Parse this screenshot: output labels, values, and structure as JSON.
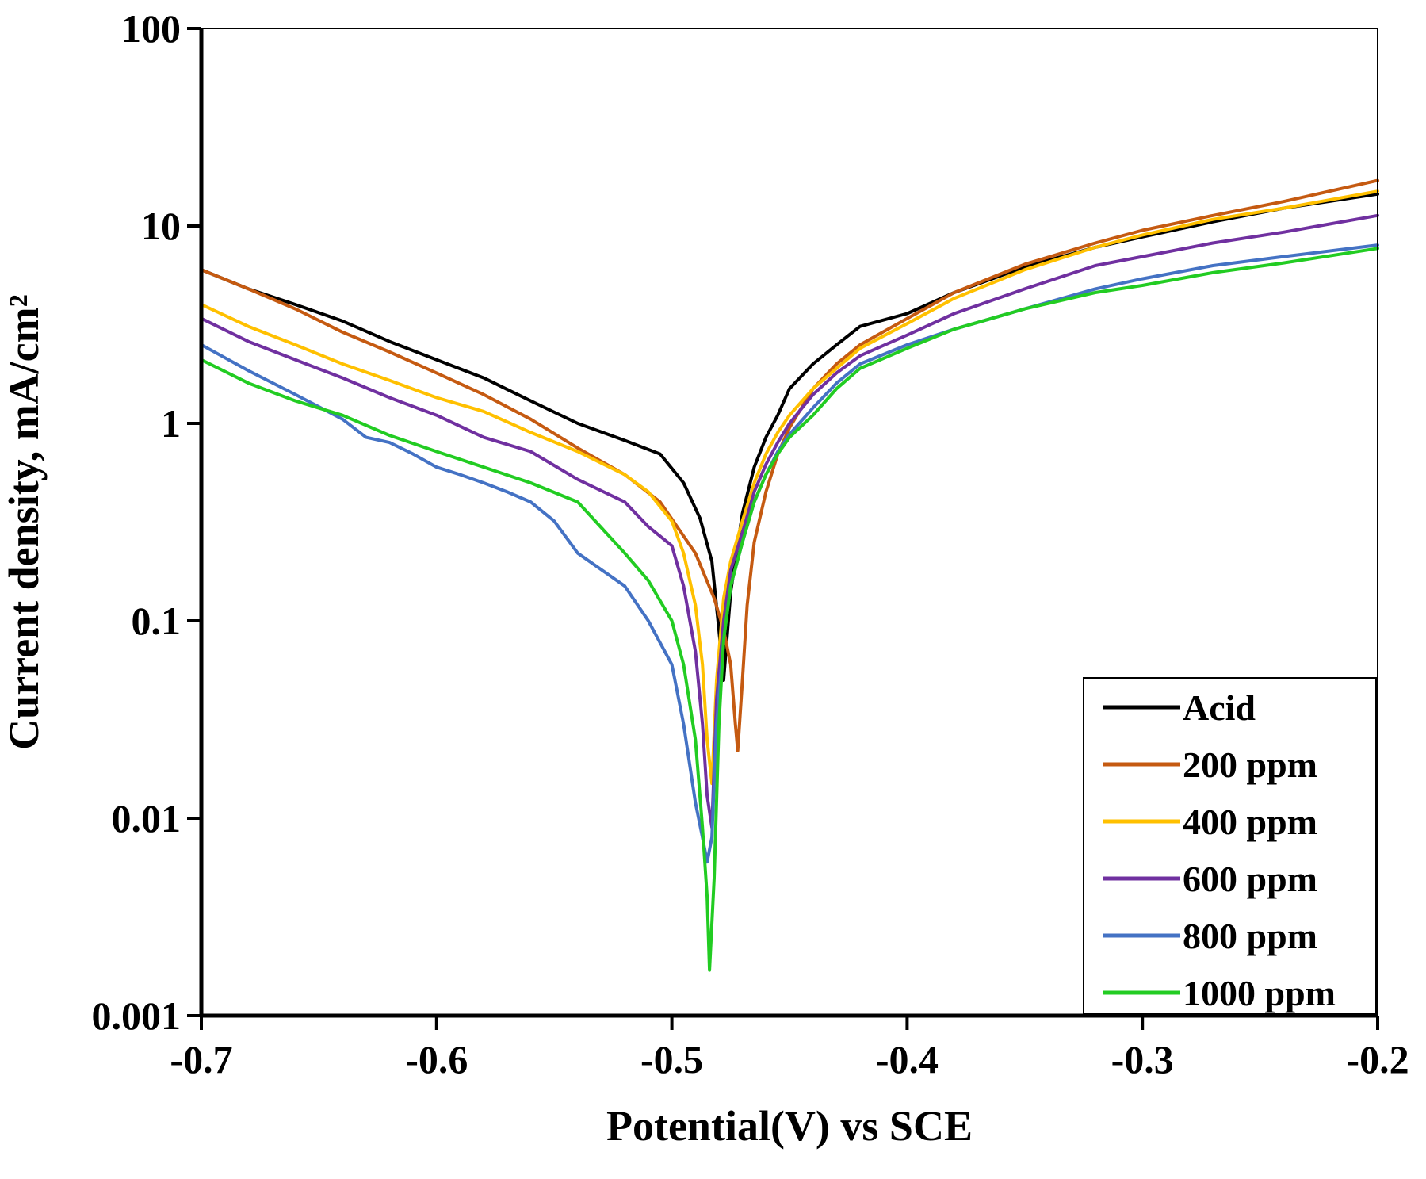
{
  "chart_data": {
    "type": "line",
    "xlabel": "Potential(V) vs SCE",
    "ylabel": "Current density, mA/cm²",
    "y_scale": "log",
    "xlim": [
      -0.7,
      -0.2
    ],
    "ylim": [
      0.001,
      100
    ],
    "x_ticks": [
      "-0.7",
      "-0.6",
      "-0.5",
      "-0.4",
      "-0.3",
      "-0.2"
    ],
    "y_ticks": [
      "0.001",
      "0.01",
      "0.1",
      "1",
      "10",
      "100"
    ],
    "grid": false,
    "legend_position": "bottom-right",
    "series": [
      {
        "name": "Acid",
        "color": "#000000",
        "x": [
          -0.7,
          -0.68,
          -0.66,
          -0.64,
          -0.62,
          -0.6,
          -0.58,
          -0.56,
          -0.54,
          -0.52,
          -0.505,
          -0.495,
          -0.488,
          -0.483,
          -0.48,
          -0.478,
          -0.475,
          -0.47,
          -0.465,
          -0.46,
          -0.455,
          -0.45,
          -0.44,
          -0.43,
          -0.42,
          -0.4,
          -0.38,
          -0.35,
          -0.32,
          -0.3,
          -0.27,
          -0.24,
          -0.2
        ],
        "y": [
          6.0,
          4.8,
          4.0,
          3.3,
          2.6,
          2.1,
          1.7,
          1.3,
          1.0,
          0.82,
          0.7,
          0.5,
          0.33,
          0.2,
          0.09,
          0.05,
          0.14,
          0.35,
          0.6,
          0.85,
          1.1,
          1.5,
          2.0,
          2.5,
          3.1,
          3.6,
          4.6,
          6.2,
          7.8,
          8.8,
          10.5,
          12.3,
          14.5
        ]
      },
      {
        "name": "200 ppm",
        "color": "#C55A11",
        "x": [
          -0.7,
          -0.68,
          -0.66,
          -0.64,
          -0.62,
          -0.6,
          -0.58,
          -0.56,
          -0.54,
          -0.52,
          -0.505,
          -0.49,
          -0.482,
          -0.478,
          -0.475,
          -0.473,
          -0.472,
          -0.47,
          -0.468,
          -0.465,
          -0.46,
          -0.455,
          -0.45,
          -0.44,
          -0.43,
          -0.42,
          -0.4,
          -0.38,
          -0.35,
          -0.32,
          -0.3,
          -0.27,
          -0.24,
          -0.2
        ],
        "y": [
          6.0,
          4.8,
          3.8,
          2.9,
          2.3,
          1.8,
          1.4,
          1.05,
          0.75,
          0.55,
          0.4,
          0.22,
          0.13,
          0.09,
          0.06,
          0.03,
          0.022,
          0.05,
          0.12,
          0.25,
          0.45,
          0.7,
          0.95,
          1.5,
          2.0,
          2.5,
          3.4,
          4.6,
          6.4,
          8.2,
          9.5,
          11.3,
          13.3,
          17.0
        ]
      },
      {
        "name": "400 ppm",
        "color": "#FFC000",
        "x": [
          -0.7,
          -0.68,
          -0.66,
          -0.64,
          -0.62,
          -0.6,
          -0.58,
          -0.56,
          -0.54,
          -0.52,
          -0.51,
          -0.5,
          -0.495,
          -0.49,
          -0.487,
          -0.485,
          -0.483,
          -0.481,
          -0.478,
          -0.475,
          -0.47,
          -0.465,
          -0.46,
          -0.455,
          -0.45,
          -0.44,
          -0.43,
          -0.42,
          -0.4,
          -0.38,
          -0.35,
          -0.32,
          -0.3,
          -0.27,
          -0.24,
          -0.2
        ],
        "y": [
          4.0,
          3.1,
          2.5,
          2.0,
          1.65,
          1.35,
          1.15,
          0.9,
          0.72,
          0.55,
          0.45,
          0.32,
          0.22,
          0.12,
          0.06,
          0.025,
          0.015,
          0.05,
          0.13,
          0.2,
          0.32,
          0.5,
          0.7,
          0.9,
          1.1,
          1.5,
          1.9,
          2.4,
          3.2,
          4.3,
          6.0,
          7.8,
          9.0,
          10.8,
          12.3,
          15.0
        ]
      },
      {
        "name": "600 ppm",
        "color": "#7030A0",
        "x": [
          -0.7,
          -0.68,
          -0.66,
          -0.64,
          -0.62,
          -0.6,
          -0.58,
          -0.56,
          -0.54,
          -0.52,
          -0.51,
          -0.5,
          -0.495,
          -0.49,
          -0.487,
          -0.485,
          -0.483,
          -0.481,
          -0.478,
          -0.475,
          -0.47,
          -0.465,
          -0.46,
          -0.455,
          -0.45,
          -0.44,
          -0.43,
          -0.42,
          -0.4,
          -0.38,
          -0.35,
          -0.32,
          -0.3,
          -0.27,
          -0.24,
          -0.2
        ],
        "y": [
          3.4,
          2.6,
          2.1,
          1.7,
          1.35,
          1.1,
          0.85,
          0.72,
          0.52,
          0.4,
          0.3,
          0.24,
          0.15,
          0.07,
          0.03,
          0.013,
          0.009,
          0.04,
          0.1,
          0.18,
          0.28,
          0.45,
          0.62,
          0.8,
          1.0,
          1.4,
          1.8,
          2.2,
          2.8,
          3.6,
          4.8,
          6.3,
          7.0,
          8.2,
          9.3,
          11.3
        ]
      },
      {
        "name": "800 ppm",
        "color": "#4472C4",
        "x": [
          -0.7,
          -0.68,
          -0.66,
          -0.64,
          -0.63,
          -0.62,
          -0.61,
          -0.6,
          -0.59,
          -0.58,
          -0.57,
          -0.56,
          -0.55,
          -0.54,
          -0.52,
          -0.51,
          -0.5,
          -0.495,
          -0.49,
          -0.487,
          -0.485,
          -0.483,
          -0.481,
          -0.478,
          -0.475,
          -0.47,
          -0.465,
          -0.46,
          -0.455,
          -0.45,
          -0.44,
          -0.43,
          -0.42,
          -0.4,
          -0.38,
          -0.35,
          -0.32,
          -0.3,
          -0.27,
          -0.24,
          -0.2
        ],
        "y": [
          2.5,
          1.85,
          1.4,
          1.05,
          0.85,
          0.8,
          0.7,
          0.6,
          0.55,
          0.5,
          0.45,
          0.4,
          0.32,
          0.22,
          0.15,
          0.1,
          0.06,
          0.03,
          0.012,
          0.008,
          0.006,
          0.008,
          0.03,
          0.08,
          0.15,
          0.25,
          0.4,
          0.55,
          0.72,
          0.88,
          1.2,
          1.6,
          2.0,
          2.5,
          3.0,
          3.8,
          4.8,
          5.4,
          6.3,
          7.0,
          8.0
        ]
      },
      {
        "name": "1000 ppm",
        "color": "#22CC22",
        "x": [
          -0.7,
          -0.68,
          -0.66,
          -0.64,
          -0.62,
          -0.6,
          -0.58,
          -0.56,
          -0.54,
          -0.52,
          -0.51,
          -0.5,
          -0.495,
          -0.49,
          -0.487,
          -0.485,
          -0.484,
          -0.482,
          -0.48,
          -0.478,
          -0.475,
          -0.47,
          -0.465,
          -0.46,
          -0.455,
          -0.45,
          -0.44,
          -0.43,
          -0.42,
          -0.4,
          -0.38,
          -0.35,
          -0.32,
          -0.3,
          -0.27,
          -0.24,
          -0.2
        ],
        "y": [
          2.1,
          1.6,
          1.3,
          1.1,
          0.87,
          0.72,
          0.6,
          0.5,
          0.4,
          0.22,
          0.16,
          0.1,
          0.06,
          0.025,
          0.009,
          0.004,
          0.0017,
          0.005,
          0.03,
          0.08,
          0.15,
          0.25,
          0.4,
          0.55,
          0.7,
          0.85,
          1.1,
          1.5,
          1.9,
          2.4,
          3.0,
          3.8,
          4.6,
          5.0,
          5.8,
          6.5,
          7.7
        ]
      }
    ]
  }
}
